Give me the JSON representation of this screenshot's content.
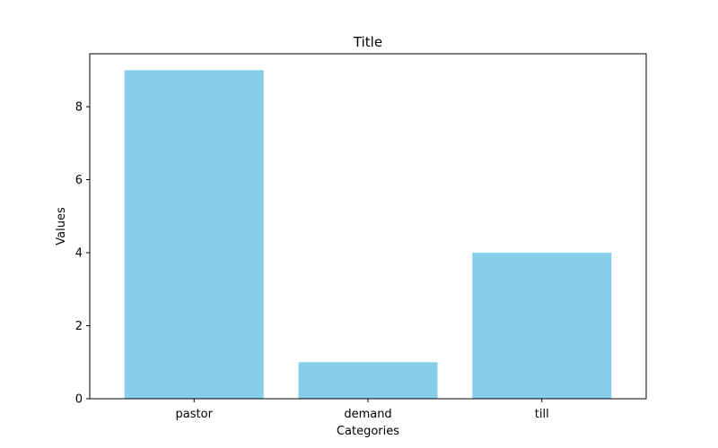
{
  "chart_data": {
    "type": "bar",
    "title": "Title",
    "xlabel": "Categories",
    "ylabel": "Values",
    "categories": [
      "pastor",
      "demand",
      "till"
    ],
    "values": [
      9,
      1,
      4
    ],
    "ylim": [
      0,
      9.45
    ],
    "yticks": [
      0,
      2,
      4,
      6,
      8
    ],
    "bar_color": "#87CEEB",
    "grid": false,
    "legend": "none"
  }
}
